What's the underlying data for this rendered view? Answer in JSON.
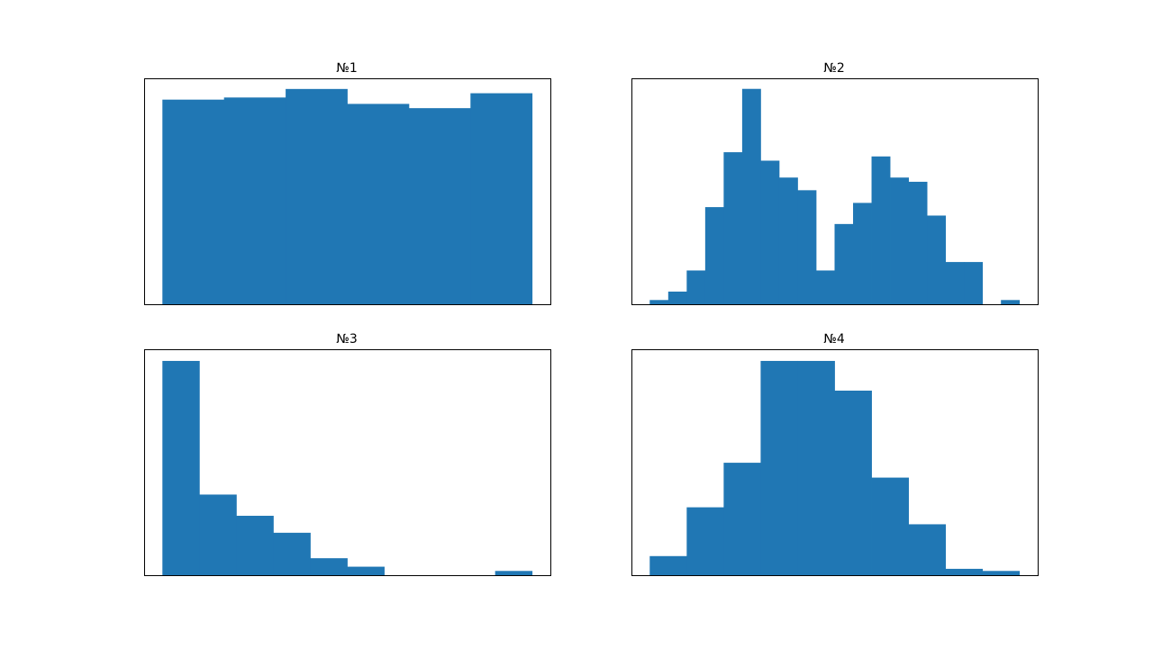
{
  "colors": {
    "bar": "#2077b4",
    "frame": "#000000",
    "background": "#ffffff"
  },
  "chart_data": [
    {
      "type": "bar",
      "title": "№1",
      "xlabel": "",
      "ylabel": "",
      "grid": false,
      "bins": 6,
      "values": [
        96,
        97,
        101,
        94,
        92,
        99
      ],
      "ylim": [
        0,
        106
      ]
    },
    {
      "type": "bar",
      "title": "№2",
      "xlabel": "",
      "ylabel": "",
      "grid": false,
      "bins": 20,
      "values": [
        1,
        3,
        8,
        23,
        36,
        51,
        34,
        30,
        27,
        8,
        19,
        24,
        35,
        30,
        29,
        21,
        10,
        10,
        0,
        1
      ],
      "ylim": [
        0,
        53.5
      ]
    },
    {
      "type": "bar",
      "title": "№3",
      "xlabel": "",
      "ylabel": "",
      "grid": false,
      "bins": 10,
      "values": [
        101,
        38,
        28,
        20,
        8,
        4,
        0,
        0,
        0,
        2
      ],
      "ylim": [
        0,
        106.5
      ]
    },
    {
      "type": "bar",
      "title": "№4",
      "xlabel": "",
      "ylabel": "",
      "grid": false,
      "bins": 10,
      "values": [
        9,
        32,
        53,
        101,
        101,
        87,
        46,
        24,
        3,
        2
      ],
      "ylim": [
        0,
        106.5
      ]
    }
  ]
}
